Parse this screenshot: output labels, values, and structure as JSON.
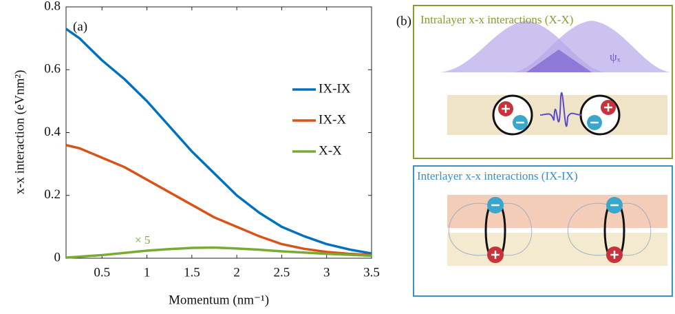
{
  "chart_data": {
    "type": "line",
    "panel_label": "(a)",
    "x_label": "Momentum (nm⁻¹)",
    "y_label": "x-x interaction (eVnm²)",
    "x": [
      0.1,
      0.25,
      0.5,
      0.75,
      1,
      1.25,
      1.5,
      1.75,
      2,
      2.25,
      2.5,
      2.75,
      3,
      3.25,
      3.5
    ],
    "series": [
      {
        "name": "IX-IX",
        "color": "#0072bd",
        "values": [
          0.73,
          0.7,
          0.63,
          0.57,
          0.5,
          0.42,
          0.34,
          0.27,
          0.2,
          0.145,
          0.1,
          0.07,
          0.045,
          0.028,
          0.015
        ]
      },
      {
        "name": "IX-X",
        "color": "#d95319",
        "values": [
          0.36,
          0.35,
          0.32,
          0.29,
          0.25,
          0.21,
          0.17,
          0.13,
          0.1,
          0.07,
          0.045,
          0.03,
          0.02,
          0.014,
          0.01
        ]
      },
      {
        "name": "X-X",
        "color": "#77ac30",
        "values": [
          0.002,
          0.005,
          0.01,
          0.017,
          0.024,
          0.029,
          0.033,
          0.034,
          0.031,
          0.027,
          0.022,
          0.018,
          0.014,
          0.011,
          0.008
        ]
      }
    ],
    "annotation": "× 5",
    "xlim": [
      0.1,
      3.5
    ],
    "ylim": [
      0,
      0.8
    ],
    "xticks": [
      0.5,
      1,
      1.5,
      2,
      2.5,
      3,
      3.5
    ],
    "yticks": [
      0,
      0.2,
      0.4,
      0.6,
      0.8
    ],
    "legend": "right"
  },
  "panel_b": {
    "label": "(b)",
    "intralayer_title": "Intralayer x-x interactions (X-X)",
    "wavefunction_label": "ψₓ",
    "interlayer_title": "Interlayer x-x interactions (IX-IX)"
  }
}
